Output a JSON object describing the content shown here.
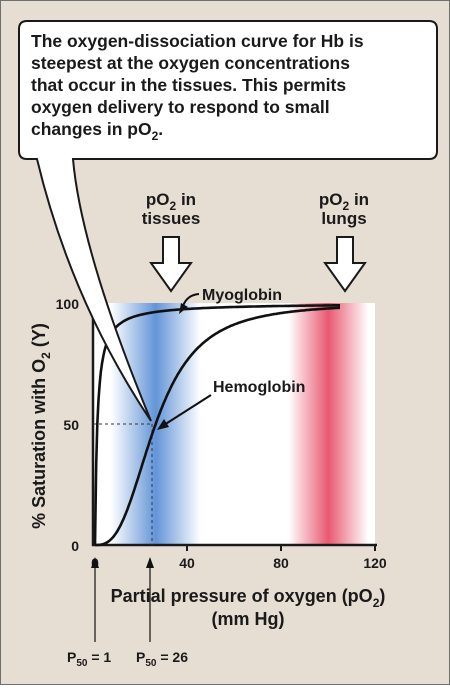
{
  "callout": {
    "lines": [
      "The oxygen-dissociation curve for Hb is",
      "steepest at the oxygen concentrations",
      "that occur in the tissues. This permits",
      "oxygen delivery to respond to small",
      "changes in pO2."
    ]
  },
  "arrows": {
    "tissues": {
      "line1": "pO2 in",
      "line2": "tissues"
    },
    "lungs": {
      "line1": "pO2 in",
      "line2": "lungs"
    }
  },
  "chart_data": {
    "type": "line",
    "xlabel_line1": "Partial pressure of oxygen (pO2)",
    "xlabel_line2": "(mm Hg)",
    "ylabel": "% Saturation with O2 (Y)",
    "xlim": [
      0,
      120
    ],
    "ylim": [
      0,
      100
    ],
    "x_ticks": [
      0,
      40,
      80,
      120
    ],
    "y_ticks": [
      0,
      50,
      100
    ],
    "series": [
      {
        "name": "Myoglobin",
        "p50": 1,
        "hill_n": 1,
        "x_max": 105
      },
      {
        "name": "Hemoglobin",
        "p50": 26,
        "hill_n": 2.8,
        "x_max": 105
      }
    ],
    "shaded_bands": [
      {
        "label": "tissues",
        "x_center": 26,
        "color": "#5b8fd6"
      },
      {
        "label": "lungs",
        "x_center": 100,
        "color": "#e8506a"
      }
    ],
    "p50_markers": [
      {
        "label": "P50 = 1",
        "x": 1
      },
      {
        "label": "P50 = 26",
        "x": 26
      }
    ]
  }
}
